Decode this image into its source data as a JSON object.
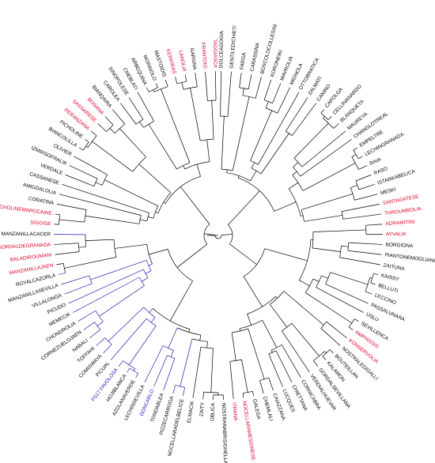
{
  "colors": {
    "default_branch": "#000000",
    "default_label": "#000000",
    "red_label": "#e0002a",
    "blue_branch": "#1f1fb4",
    "blue_label": "#1a1acc"
  },
  "tree": {
    "type": "circular-dendrogram",
    "leaves": [
      {
        "label": "DOLCEAGOGIA",
        "color": "default"
      },
      {
        "label": "GENTILEDICHIETI",
        "color": "default"
      },
      {
        "label": "FARGA",
        "color": "default"
      },
      {
        "label": "CARASSINA",
        "color": "default"
      },
      {
        "label": "BOSCOLOCOLLESINI",
        "color": "default"
      },
      {
        "label": "KORONEIKI",
        "color": "default"
      },
      {
        "label": "MAVROLIA",
        "color": "default"
      },
      {
        "label": "MIGNOLA",
        "color": "default"
      },
      {
        "label": "OTTOBRATICA",
        "color": "default"
      },
      {
        "label": "ZALMATI",
        "color": "default"
      },
      {
        "label": "CANINO",
        "color": "default"
      },
      {
        "label": "CAPOLGA",
        "color": "default"
      },
      {
        "label": "CELLINANARDO",
        "color": "default"
      },
      {
        "label": "BLANQUETA",
        "color": "default"
      },
      {
        "label": "MAUREYA",
        "color": "default"
      },
      {
        "label": "CHANGLOTREAL",
        "color": "default"
      },
      {
        "label": "EMPELTRE",
        "color": "default"
      },
      {
        "label": "LECHINGRANADA",
        "color": "default"
      },
      {
        "label": "RAIA",
        "color": "default"
      },
      {
        "label": "RASO",
        "color": "default"
      },
      {
        "label": "ISTARKABELICA",
        "color": "default"
      },
      {
        "label": "MESKI",
        "color": "default"
      },
      {
        "label": "SANTAGATESE",
        "color": "red"
      },
      {
        "label": "THROUMBOLIA",
        "color": "red"
      },
      {
        "label": "ADRAMITINI",
        "color": "red"
      },
      {
        "label": "AYVALIK",
        "color": "red"
      },
      {
        "label": "BORGIONA",
        "color": "default"
      },
      {
        "label": "PIANTONEMOGLIANO",
        "color": "default"
      },
      {
        "label": "ZAITUNA",
        "color": "default"
      },
      {
        "label": "KAISSY",
        "color": "default"
      },
      {
        "label": "BELLUTI",
        "color": "default"
      },
      {
        "label": "LECCINO",
        "color": "default"
      },
      {
        "label": "PASSALUNARA",
        "color": "default"
      },
      {
        "label": "USLU",
        "color": "default"
      },
      {
        "label": "SEVILLENCA",
        "color": "default"
      },
      {
        "label": "AMPHISSIS",
        "color": "red"
      },
      {
        "label": "KONSERVOLIA",
        "color": "red"
      },
      {
        "label": "NOSTRALEDIGALLI",
        "color": "default"
      },
      {
        "label": "BOUTEILLAN",
        "color": "default"
      },
      {
        "label": "KALAMON",
        "color": "default"
      },
      {
        "label": "GORDALSEVILLANA",
        "color": "default"
      },
      {
        "label": "VERDIALHUEVAR",
        "color": "default"
      },
      {
        "label": "CORNICABRA",
        "color": "default"
      },
      {
        "label": "CHIETTANA",
        "color": "default"
      },
      {
        "label": "LUCQUES",
        "color": "default"
      },
      {
        "label": "CAIAZZANA",
        "color": "default"
      },
      {
        "label": "CHEMLALI",
        "color": "default"
      },
      {
        "label": "GALEGA",
        "color": "default"
      },
      {
        "label": "NOCELLARAMESSINESE",
        "color": "red"
      },
      {
        "label": "ITRANA",
        "color": "red"
      },
      {
        "label": "NOSTRANABRISIGHELLA",
        "color": "default"
      },
      {
        "label": "OBLICA",
        "color": "default"
      },
      {
        "label": "ZAITY",
        "color": "default"
      },
      {
        "label": "ELMACIK",
        "color": "default"
      },
      {
        "label": "NOCELLARADELBELICE",
        "color": "blue"
      },
      {
        "label": "PIZZECARROGA",
        "color": "blue"
      },
      {
        "label": "TONDABLEA",
        "color": "blue"
      },
      {
        "label": "DONCARLO",
        "color": "blue_label"
      },
      {
        "label": "LECHINSEVILLA",
        "color": "blue"
      },
      {
        "label": "AZOLANAVERDE",
        "color": "blue"
      },
      {
        "label": "HOJIBLANCA",
        "color": "blue"
      },
      {
        "label": "FS17 FAVOLOSA",
        "color": "blue_label"
      },
      {
        "label": "PICUAL",
        "color": "blue"
      },
      {
        "label": "COMISWAYA",
        "color": "blue"
      },
      {
        "label": "TOFFAHI",
        "color": "blue"
      },
      {
        "label": "NABALI",
        "color": "blue"
      },
      {
        "label": "CORNEZUELOJAEN",
        "color": "blue"
      },
      {
        "label": "CHONDROLIA",
        "color": "blue"
      },
      {
        "label": "MEMECIK",
        "color": "blue"
      },
      {
        "label": "PICUDO",
        "color": "blue"
      },
      {
        "label": "VILLALONGA",
        "color": "blue"
      },
      {
        "label": "MANZANILLASEVILLA",
        "color": "blue"
      },
      {
        "label": "ROYALCAZORLA",
        "color": "blue"
      },
      {
        "label": "MANZANILLAJAEN",
        "color": "red"
      },
      {
        "label": "BALADIROUMANI",
        "color": "red"
      },
      {
        "label": "GORDALDEGRANADA",
        "color": "red"
      },
      {
        "label": "MANZANILLACACER",
        "color": "blue"
      },
      {
        "label": "SIGOISE",
        "color": "red"
      },
      {
        "label": "PICHOLINEMAROCAINE",
        "color": "red"
      },
      {
        "label": "CORATINA",
        "color": "default"
      },
      {
        "label": "AMIGDALOLIA",
        "color": "default"
      },
      {
        "label": "CASSANESE",
        "color": "default"
      },
      {
        "label": "VERDALE",
        "color": "default"
      },
      {
        "label": "IZMIRSOFRALIK",
        "color": "default"
      },
      {
        "label": "OLIVIER",
        "color": "default"
      },
      {
        "label": "BIANCOLILLA",
        "color": "default"
      },
      {
        "label": "PICHOLINE",
        "color": "default"
      },
      {
        "label": "PERANZANA",
        "color": "red"
      },
      {
        "label": "SASSARESE",
        "color": "red"
      },
      {
        "label": "BOSANA",
        "color": "red"
      },
      {
        "label": "BIANQAIRA",
        "color": "default"
      },
      {
        "label": "CAROLEA",
        "color": "default"
      },
      {
        "label": "SINOPOLESE",
        "color": "default"
      },
      {
        "label": "CHEBLATI",
        "color": "default"
      },
      {
        "label": "ARBEQUINA",
        "color": "default"
      },
      {
        "label": "MORAIOLO",
        "color": "default"
      },
      {
        "label": "MASTOIDIS",
        "color": "default"
      },
      {
        "label": "KERKIRAS",
        "color": "red"
      },
      {
        "label": "LANOLIA",
        "color": "red"
      },
      {
        "label": "GARGNA",
        "color": "default"
      },
      {
        "label": "FRANTOIO",
        "color": "red"
      },
      {
        "label": "TAGGIASCA",
        "color": "red"
      }
    ]
  }
}
